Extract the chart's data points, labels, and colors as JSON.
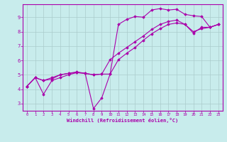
{
  "title": "",
  "xlabel": "Windchill (Refroidissement éolien,°C)",
  "ylabel": "",
  "xlim": [
    -0.5,
    23.5
  ],
  "ylim": [
    2.5,
    9.9
  ],
  "xticks": [
    0,
    1,
    2,
    3,
    4,
    5,
    6,
    7,
    8,
    9,
    10,
    11,
    12,
    13,
    14,
    15,
    16,
    17,
    18,
    19,
    20,
    21,
    22,
    23
  ],
  "yticks": [
    3,
    4,
    5,
    6,
    7,
    8,
    9
  ],
  "bg_color": "#c8ecec",
  "line_color": "#aa00aa",
  "grid_color": "#aacccc",
  "line1_x": [
    0,
    1,
    2,
    3,
    4,
    5,
    6,
    7,
    8,
    9,
    10,
    11,
    12,
    13,
    14,
    15,
    16,
    17,
    18,
    19,
    20,
    21,
    22,
    23
  ],
  "line1_y": [
    4.2,
    4.8,
    4.6,
    4.7,
    5.0,
    5.1,
    5.15,
    5.1,
    2.65,
    3.4,
    5.05,
    8.5,
    8.85,
    9.05,
    9.0,
    9.5,
    9.6,
    9.5,
    9.55,
    9.2,
    9.1,
    9.05,
    8.3,
    8.5
  ],
  "line2_x": [
    0,
    1,
    2,
    3,
    4,
    5,
    6,
    7,
    8,
    9,
    10,
    11,
    12,
    13,
    14,
    15,
    16,
    17,
    18,
    19,
    20,
    21,
    22,
    23
  ],
  "line2_y": [
    4.2,
    4.8,
    4.6,
    4.8,
    5.0,
    5.1,
    5.2,
    5.1,
    5.0,
    5.05,
    6.05,
    6.5,
    6.9,
    7.3,
    7.7,
    8.15,
    8.5,
    8.7,
    8.8,
    8.5,
    7.9,
    8.3,
    8.3,
    8.5
  ],
  "line3_x": [
    0,
    1,
    2,
    3,
    4,
    5,
    6,
    7,
    8,
    9,
    10,
    11,
    12,
    13,
    14,
    15,
    16,
    17,
    18,
    19,
    20,
    21,
    22,
    23
  ],
  "line3_y": [
    4.2,
    4.8,
    3.65,
    4.6,
    4.8,
    5.0,
    5.15,
    5.1,
    5.0,
    5.05,
    5.05,
    6.05,
    6.5,
    6.9,
    7.4,
    7.85,
    8.2,
    8.5,
    8.6,
    8.5,
    8.0,
    8.2,
    8.3,
    8.5
  ]
}
